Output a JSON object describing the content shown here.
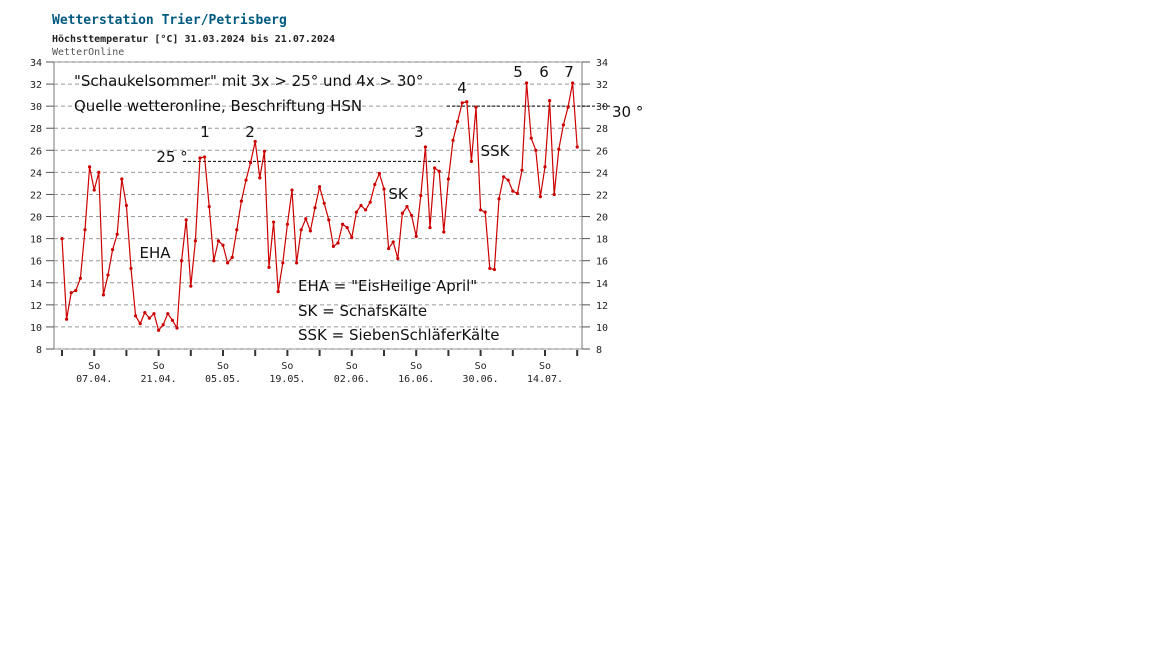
{
  "chart_data": {
    "type": "line",
    "title": "Wetterstation Trier/Petrisberg",
    "subtitle": "Höchsttemperatur [°C] 31.03.2024 bis 21.07.2024",
    "source": "WetterOnline",
    "weekday_label": "So",
    "categories": [
      null,
      null,
      null,
      null,
      null,
      null,
      null,
      "07.04.",
      null,
      null,
      null,
      null,
      null,
      null,
      null,
      null,
      null,
      null,
      null,
      null,
      null,
      "21.04.",
      null,
      null,
      null,
      null,
      null,
      null,
      null,
      null,
      null,
      null,
      null,
      null,
      null,
      "05.05.",
      null,
      null,
      null,
      null,
      null,
      null,
      null,
      null,
      null,
      null,
      null,
      null,
      null,
      "19.05.",
      null,
      null,
      null,
      null,
      null,
      null,
      null,
      null,
      null,
      null,
      null,
      null,
      null,
      "02.06.",
      null,
      null,
      null,
      null,
      null,
      null,
      null,
      null,
      null,
      null,
      null,
      null,
      null,
      "16.06.",
      null,
      null,
      null,
      null,
      null,
      null,
      null,
      null,
      null,
      null,
      null,
      null,
      null,
      "30.06.",
      null,
      null,
      null,
      null,
      null,
      null,
      null,
      null,
      null,
      null,
      null,
      null,
      null,
      "14.07.",
      null,
      null,
      null,
      null,
      null,
      null,
      null
    ],
    "series": [
      {
        "color": "#cc0000",
        "values": [
          18.0,
          10.7,
          13.1,
          13.3,
          14.4,
          18.8,
          24.5,
          22.4,
          24.0,
          12.9,
          14.7,
          17.0,
          18.4,
          23.4,
          21.0,
          15.3,
          11.0,
          10.3,
          11.3,
          10.8,
          11.2,
          9.7,
          10.2,
          11.2,
          10.6,
          9.9,
          16.0,
          19.7,
          13.7,
          17.8,
          25.3,
          25.4,
          20.9,
          16.0,
          17.8,
          17.4,
          15.8,
          16.3,
          18.8,
          21.4,
          23.3,
          24.9,
          26.8,
          23.5,
          25.9,
          15.4,
          19.5,
          13.2,
          15.8,
          19.3,
          22.4,
          15.8,
          18.8,
          19.8,
          18.7,
          20.8,
          22.7,
          21.2,
          19.7,
          17.3,
          17.6,
          19.3,
          19.0,
          18.1,
          20.4,
          21.0,
          20.6,
          21.3,
          22.9,
          23.9,
          22.5,
          17.1,
          17.7,
          16.2,
          20.3,
          20.9,
          20.1,
          18.2,
          21.9,
          26.3,
          19.0,
          24.4,
          24.1,
          18.6,
          23.4,
          26.9,
          28.6,
          30.3,
          30.4,
          25.0,
          29.9,
          20.6,
          20.4,
          15.3,
          15.2,
          21.6,
          23.6,
          23.3,
          22.3,
          22.1,
          24.2,
          32.1,
          27.1,
          26.0,
          21.8,
          24.5,
          30.5,
          22.0,
          26.1,
          28.3,
          29.9,
          32.1,
          26.3
        ]
      }
    ],
    "ylim": [
      8,
      34
    ],
    "yticks": [
      8,
      10,
      12,
      14,
      16,
      18,
      20,
      22,
      24,
      26,
      28,
      30,
      32,
      34
    ],
    "grid": true,
    "reference_lines": [
      {
        "value": 25,
        "label": "25 °"
      },
      {
        "value": 30,
        "label": "30 °"
      }
    ],
    "annotations": [
      "\"Schaukelsommer\" mit 3x > 25° und 4x > 30°",
      "Quelle wetteronline, Beschriftung HSN",
      "1",
      "2",
      "3",
      "4",
      "5",
      "6",
      "7",
      "SK",
      "SSK",
      "EHA",
      "EHA = \"EisHeilige April\"",
      "SK = SchafsKälte",
      "SSK = SiebenSchläferKälte"
    ]
  }
}
